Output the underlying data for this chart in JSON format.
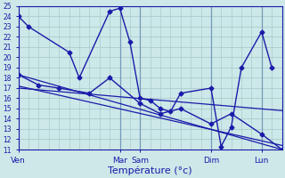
{
  "background_color": "#cce8e8",
  "grid_color": "#aacccc",
  "line_color": "#1a1aaa",
  "ylim": [
    11,
    25
  ],
  "yticks": [
    11,
    12,
    13,
    14,
    15,
    16,
    17,
    18,
    19,
    20,
    21,
    22,
    23,
    24,
    25
  ],
  "xlabel": "Température (°c)",
  "xlabel_color": "#1a1aaa",
  "tick_labels_color": "#1a1aaa",
  "day_labels": [
    "Ven",
    "Mar",
    "Sam",
    "Dim",
    "Lun"
  ],
  "day_x": [
    0,
    10,
    12,
    19,
    24
  ],
  "xlim": [
    0,
    26
  ],
  "main_x": [
    0,
    1,
    5,
    6,
    9,
    10,
    11,
    12,
    13,
    14,
    15,
    16,
    19,
    20,
    21,
    22,
    24,
    25
  ],
  "main_y": [
    24,
    23,
    20.5,
    18,
    24.5,
    24.8,
    21.5,
    16,
    15.8,
    15,
    14.7,
    16.5,
    17,
    11.3,
    13.2,
    19,
    22.5,
    19
  ],
  "second_x": [
    0,
    2,
    4,
    7,
    9,
    12,
    14,
    16,
    19,
    21,
    24,
    26
  ],
  "second_y": [
    18.3,
    17.3,
    17,
    16.5,
    18,
    15.5,
    14.5,
    15,
    13.5,
    14.5,
    12.5,
    11
  ],
  "trend1_x": [
    0,
    26
  ],
  "trend1_y": [
    18.3,
    11.0
  ],
  "trend2_x": [
    0,
    26
  ],
  "trend2_y": [
    17.2,
    11.4
  ],
  "trend3_x": [
    0,
    26
  ],
  "trend3_y": [
    17.0,
    14.8
  ],
  "figsize": [
    3.2,
    2.0
  ],
  "dpi": 100
}
